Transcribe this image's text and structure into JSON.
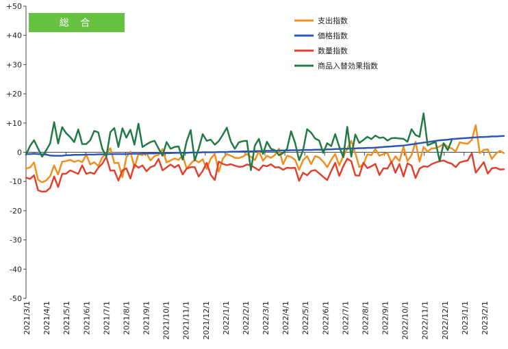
{
  "chart_data": {
    "type": "line",
    "title": "",
    "badge_label": "総 合",
    "badge_color": "#66c240",
    "xlabel": "",
    "ylabel": "",
    "ylim": [
      -50,
      50
    ],
    "y_ticks": [
      "+50",
      "+40",
      "+30",
      "+20",
      "+10",
      "0",
      "-10",
      "-20",
      "-30",
      "-40",
      "-50"
    ],
    "y_tick_values": [
      50,
      40,
      30,
      20,
      10,
      0,
      -10,
      -20,
      -30,
      -40,
      -50
    ],
    "x_tick_labels": [
      "2021/3/1",
      "2021/4/1",
      "2021/5/1",
      "2021/6/1",
      "2021/7/1",
      "2021/8/1",
      "2021/9/1",
      "2021/10/1",
      "2021/11/1",
      "2021/12/1",
      "2022/1/1",
      "2022/2/1",
      "2022/3/1",
      "2022/4/1",
      "2022/5/1",
      "2022/6/1",
      "2022/7/1",
      "2022/8/1",
      "2022/9/1",
      "2022/10/1",
      "2022/11/1",
      "2022/12/1",
      "2023/1/1",
      "2023/2/1"
    ],
    "grid": false,
    "legend_position": "top-right",
    "series": [
      {
        "name": "支出指数",
        "color": "#f28e1c",
        "values": [
          -5.6,
          -5.2,
          -3.5,
          -9.4,
          -10.3,
          -9.7,
          -8.2,
          -4.5,
          -7.6,
          -3.2,
          -3.0,
          -2.6,
          -3.3,
          -2.8,
          -3.4,
          -0.8,
          -4.2,
          -3.4,
          -4.7,
          -1.7,
          -0.2,
          1.4,
          -3.7,
          -3.6,
          -8.6,
          -1.7,
          0.2,
          -5.3,
          -0.6,
          -1.0,
          -0.3,
          -2.8,
          -1.3,
          -0.9,
          1.1,
          -3.5,
          -2.8,
          -2.1,
          -2.6,
          -1.1,
          -5.6,
          -3.9,
          -2.5,
          -3.5,
          -2.4,
          -5.7,
          -2.2,
          -0.6,
          -6.7,
          -2.2,
          -0.6,
          -1.2,
          -1.9,
          -2.0,
          -1.5,
          -0.6,
          -1.6,
          -2.7,
          0.4,
          -2.9,
          -1.2,
          -1.9,
          -0.9,
          1.2,
          -4.1,
          -1.2,
          -1.6,
          -2.6,
          -6.0,
          -2.7,
          -1.3,
          -4.1,
          -1.3,
          -1.8,
          -3.2,
          -5.1,
          -2.6,
          -0.6,
          -4.5,
          -1.3,
          1.2,
          3.9,
          -0.3,
          -5.1,
          -4.2,
          -0.7,
          -1.0,
          1.1,
          -1.2,
          -0.6,
          -0.2,
          -3.6,
          -1.4,
          -3.0,
          1.9,
          -3.0,
          -1.0,
          3.6,
          -3.2,
          1.8,
          0.2,
          1.3,
          1.4,
          2.0,
          2.9,
          1.9,
          1.3,
          0.3,
          3.4,
          3.1,
          2.9,
          4.2,
          9.3,
          -0.3,
          0.8,
          1.0,
          -2.3,
          -0.5,
          0.5,
          -0.3
        ]
      },
      {
        "name": "価格指数",
        "color": "#2d55b5",
        "values": [
          -0.6,
          -0.6,
          -0.5,
          -0.6,
          -0.7,
          -0.8,
          -1.1,
          -1.2,
          -1.2,
          -1.2,
          -1.0,
          -1.0,
          -0.9,
          -0.9,
          -0.9,
          -0.8,
          -0.8,
          -0.8,
          -0.7,
          -0.7,
          -0.7,
          -0.6,
          -0.6,
          -0.6,
          -0.6,
          -0.6,
          -0.5,
          -0.5,
          -0.5,
          -0.4,
          -0.4,
          -0.4,
          -0.4,
          -0.3,
          -0.3,
          -0.3,
          -0.3,
          -0.2,
          -0.2,
          -0.2,
          -0.2,
          -0.1,
          -0.1,
          -0.1,
          0.0,
          0.0,
          0.0,
          0.0,
          0.1,
          0.1,
          0.1,
          0.2,
          0.2,
          0.2,
          0.3,
          0.3,
          0.3,
          0.4,
          0.4,
          0.4,
          0.5,
          0.5,
          0.5,
          0.6,
          0.6,
          0.6,
          0.7,
          0.7,
          0.7,
          0.8,
          0.8,
          0.8,
          0.9,
          0.9,
          0.9,
          1.0,
          1.0,
          1.1,
          1.1,
          1.2,
          1.2,
          1.3,
          1.3,
          1.4,
          1.4,
          1.5,
          1.5,
          1.6,
          1.7,
          1.8,
          1.9,
          2.0,
          2.1,
          2.2,
          2.3,
          2.5,
          2.7,
          2.9,
          3.1,
          3.3,
          3.5,
          3.7,
          3.9,
          4.1,
          4.2,
          4.3,
          4.5,
          4.6,
          4.7,
          4.8,
          4.9,
          5.0,
          5.1,
          5.2,
          5.2,
          5.3,
          5.4,
          5.4,
          5.5,
          5.6
        ]
      },
      {
        "name": "数量指数",
        "color": "#e1402c",
        "values": [
          -8.7,
          -9.1,
          -7.9,
          -13.0,
          -13.5,
          -13.4,
          -12.2,
          -8.3,
          -11.9,
          -7.4,
          -7.3,
          -6.2,
          -6.8,
          -7.4,
          -4.5,
          -7.4,
          -6.9,
          -7.4,
          -5.3,
          -3.9,
          -1.6,
          -6.3,
          -6.2,
          -9.7,
          -6.2,
          -5.5,
          -9.0,
          -4.2,
          -5.3,
          -4.5,
          -6.5,
          -5.1,
          -4.6,
          -2.3,
          -6.2,
          -5.2,
          -4.2,
          -5.2,
          -4.3,
          -7.6,
          -5.6,
          -5.1,
          -5.1,
          -8.3,
          -6.4,
          -3.6,
          -7.7,
          -9.5,
          -3.2,
          -4.0,
          -4.4,
          -4.1,
          -4.6,
          -5.0,
          -4.9,
          -4.2,
          -4.5,
          -5.3,
          -6.2,
          -4.5,
          -4.8,
          -4.1,
          -5.2,
          -5.1,
          -6.0,
          -5.3,
          -5.4,
          -5.3,
          -9.8,
          -7.0,
          -7.9,
          -6.4,
          -6.1,
          -7.2,
          -8.4,
          -9.5,
          -6.4,
          -3.6,
          -8.1,
          -4.8,
          -2.2,
          -3.1,
          -7.9,
          -8.0,
          -3.6,
          -5.4,
          -4.8,
          -4.0,
          -7.8,
          -5.5,
          -5.6,
          -3.2,
          -7.0,
          -4.0,
          -8.3,
          -3.8,
          -4.6,
          -8.8,
          -5.6,
          -4.8,
          -5.0,
          -4.1,
          -3.5,
          -3.1,
          -2.8,
          -3.5,
          -3.9,
          -5.1,
          -3.5,
          -3.1,
          -2.8,
          -0.3,
          -7.0,
          -5.2,
          -3.4,
          -7.3,
          -5.5,
          -5.3,
          -5.9,
          -5.8
        ]
      },
      {
        "name": "商品入替効果指数",
        "color": "#1f7a44",
        "values": [
          -0.9,
          2.2,
          4.1,
          1.3,
          -1.5,
          0.6,
          3.0,
          10.3,
          3.0,
          8.6,
          6.5,
          5.2,
          3.5,
          7.8,
          2.8,
          2.8,
          4.1,
          7.3,
          6.8,
          1.2,
          -1.5,
          6.9,
          8.3,
          1.8,
          8.2,
          5.0,
          7.7,
          2.6,
          9.8,
          1.8,
          2.7,
          3.5,
          3.9,
          1.3,
          -1.2,
          3.5,
          1.2,
          1.8,
          2.0,
          -2.5,
          3.7,
          7.6,
          -2.8,
          1.2,
          6.2,
          3.9,
          4.3,
          2.6,
          3.8,
          6.0,
          8.4,
          3.7,
          1.2,
          3.4,
          3.8,
          3.9,
          -6.1,
          2.3,
          4.6,
          -0.6,
          3.6,
          1.2,
          0.7,
          -1.0,
          -0.3,
          1.2,
          7.2,
          3.2,
          -2.7,
          0.7,
          7.9,
          6.7,
          4.7,
          4.0,
          -0.2,
          3.1,
          2.1,
          6.2,
          1.9,
          -1.7,
          8.7,
          -1.5,
          6.1,
          3.2,
          4.2,
          5.3,
          4.5,
          5.7,
          4.9,
          5.1,
          4.0,
          4.8,
          4.9,
          4.7,
          4.6,
          3.6,
          7.9,
          5.9,
          5.3,
          13.3,
          2.4,
          3.0,
          3.5,
          -3.1,
          3.1,
          0.7,
          4.1
        ]
      }
    ]
  }
}
